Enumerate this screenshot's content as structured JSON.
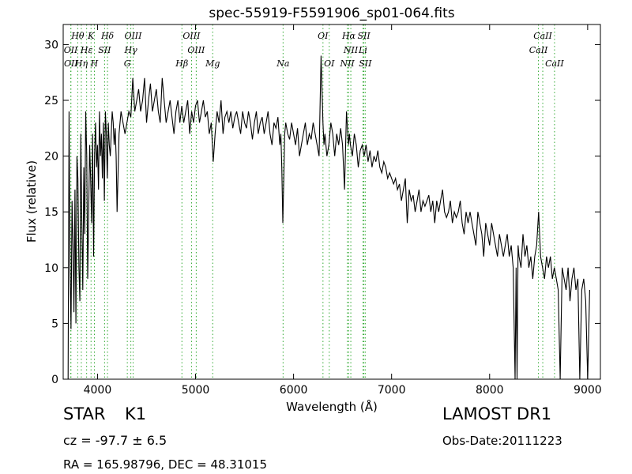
{
  "chart_data": {
    "type": "line",
    "title": "spec-55919-F5591906_sp01-064.fits",
    "xlabel": "Wavelength (Å)",
    "ylabel": "Flux (relative)",
    "xlim": [
      3650,
      9130
    ],
    "ylim": [
      0,
      31.8
    ],
    "xticks": [
      4000,
      5000,
      6000,
      7000,
      8000,
      9000
    ],
    "yticks": [
      0,
      5,
      10,
      15,
      20,
      25,
      30
    ],
    "grid": false,
    "series": [
      {
        "name": "",
        "color": "#000000",
        "x": [
          3700,
          3710,
          3720,
          3730,
          3740,
          3750,
          3760,
          3770,
          3780,
          3790,
          3800,
          3810,
          3820,
          3830,
          3840,
          3850,
          3860,
          3870,
          3880,
          3890,
          3900,
          3910,
          3920,
          3930,
          3940,
          3950,
          3960,
          3970,
          3980,
          3990,
          4000,
          4010,
          4020,
          4030,
          4040,
          4050,
          4060,
          4070,
          4080,
          4090,
          4100,
          4110,
          4120,
          4130,
          4140,
          4150,
          4160,
          4170,
          4180,
          4190,
          4200,
          4220,
          4240,
          4260,
          4280,
          4300,
          4320,
          4340,
          4360,
          4380,
          4400,
          4420,
          4440,
          4460,
          4480,
          4500,
          4520,
          4540,
          4560,
          4580,
          4600,
          4620,
          4640,
          4660,
          4680,
          4700,
          4720,
          4740,
          4760,
          4780,
          4800,
          4820,
          4840,
          4860,
          4880,
          4900,
          4920,
          4940,
          4960,
          4980,
          5000,
          5020,
          5040,
          5060,
          5080,
          5100,
          5120,
          5140,
          5160,
          5180,
          5200,
          5220,
          5240,
          5260,
          5280,
          5300,
          5320,
          5340,
          5360,
          5380,
          5400,
          5420,
          5440,
          5460,
          5480,
          5500,
          5520,
          5540,
          5560,
          5580,
          5600,
          5620,
          5640,
          5660,
          5680,
          5700,
          5720,
          5740,
          5760,
          5780,
          5800,
          5820,
          5840,
          5860,
          5870,
          5880,
          5890,
          5900,
          5910,
          5920,
          5940,
          5960,
          5980,
          6000,
          6020,
          6040,
          6060,
          6080,
          6100,
          6120,
          6140,
          6160,
          6180,
          6200,
          6220,
          6240,
          6260,
          6280,
          6300,
          6310,
          6320,
          6340,
          6360,
          6380,
          6400,
          6420,
          6440,
          6460,
          6480,
          6500,
          6520,
          6540,
          6560,
          6570,
          6580,
          6600,
          6620,
          6640,
          6660,
          6680,
          6700,
          6720,
          6740,
          6760,
          6780,
          6800,
          6820,
          6840,
          6860,
          6880,
          6900,
          6920,
          6940,
          6960,
          6980,
          7000,
          7020,
          7040,
          7060,
          7080,
          7100,
          7120,
          7140,
          7160,
          7180,
          7200,
          7220,
          7240,
          7260,
          7280,
          7300,
          7320,
          7340,
          7360,
          7380,
          7400,
          7420,
          7440,
          7460,
          7480,
          7500,
          7520,
          7540,
          7560,
          7580,
          7600,
          7620,
          7640,
          7660,
          7680,
          7700,
          7720,
          7740,
          7760,
          7780,
          7800,
          7820,
          7840,
          7860,
          7880,
          7900,
          7920,
          7940,
          7960,
          7980,
          8000,
          8020,
          8040,
          8060,
          8080,
          8100,
          8120,
          8140,
          8160,
          8180,
          8200,
          8220,
          8240,
          8260,
          8270,
          8280,
          8290,
          8300,
          8320,
          8340,
          8360,
          8380,
          8400,
          8420,
          8440,
          8460,
          8480,
          8500,
          8520,
          8540,
          8560,
          8580,
          8600,
          8620,
          8640,
          8660,
          8680,
          8700,
          8720,
          8740,
          8760,
          8780,
          8800,
          8820,
          8840,
          8860,
          8880,
          8900,
          8920,
          8940,
          8960,
          8980,
          9000,
          9020
        ],
        "y": [
          0,
          24,
          10,
          4.5,
          16,
          12,
          6,
          17,
          5,
          20,
          18,
          10,
          7,
          22,
          14,
          8,
          19,
          13,
          24,
          20,
          9,
          15,
          21,
          18,
          14,
          22,
          11,
          20,
          23,
          19,
          21,
          17,
          24,
          20,
          22,
          18,
          23,
          16,
          24,
          22,
          18,
          23,
          21,
          20,
          22,
          24,
          23,
          21,
          22.5,
          20,
          15,
          22,
          24,
          23,
          22,
          23,
          24,
          23.5,
          27,
          24,
          25,
          26,
          24,
          25,
          27,
          23,
          25,
          26.5,
          24,
          25,
          26,
          24,
          23,
          27,
          25,
          23,
          24,
          25,
          23.5,
          22,
          24,
          25,
          23,
          24.5,
          23,
          24,
          25,
          22,
          24,
          23,
          24.5,
          25,
          23,
          24,
          25,
          23.5,
          24,
          22,
          23,
          19.5,
          22,
          24,
          23,
          25,
          22,
          23.5,
          24,
          23,
          24,
          22.5,
          23.5,
          24,
          23,
          22,
          24,
          23,
          22.5,
          24,
          23,
          21.5,
          23,
          24,
          22,
          23,
          23.5,
          22,
          23,
          24,
          22,
          21,
          23,
          22.5,
          23.5,
          21,
          22,
          19,
          14,
          18,
          22,
          23,
          22,
          21.5,
          23,
          22,
          21,
          22.5,
          20,
          21,
          22,
          23,
          21,
          22,
          21.5,
          23,
          22,
          21,
          20,
          29,
          23,
          21,
          22,
          20,
          21,
          23,
          22,
          20,
          22,
          21,
          22.5,
          21,
          17,
          24,
          21,
          22,
          21,
          20,
          22,
          21,
          19,
          20.5,
          21,
          20,
          21,
          19.5,
          20.5,
          19,
          20,
          19.5,
          20.5,
          19,
          18.5,
          19.5,
          19,
          18,
          18.5,
          18,
          17.5,
          18,
          17,
          17.5,
          16,
          17,
          18,
          14,
          17,
          16,
          16.5,
          15,
          16,
          17,
          15,
          16,
          15.5,
          16,
          16.5,
          15,
          16,
          14,
          16,
          15,
          16,
          17,
          15,
          14.5,
          15,
          16,
          14,
          15,
          14.5,
          15,
          16,
          14,
          13,
          15,
          14,
          15,
          14,
          13,
          12,
          15,
          14,
          13,
          11,
          14,
          13,
          12,
          14,
          13,
          12,
          11,
          13,
          12,
          11,
          12,
          13,
          11,
          12,
          10,
          0,
          10,
          0,
          12,
          11,
          10,
          13,
          11,
          12,
          10,
          11,
          9,
          11,
          12,
          15,
          11,
          10,
          9,
          11,
          10,
          11,
          9,
          10,
          9,
          8,
          0,
          10,
          9,
          8,
          10,
          7,
          9,
          10,
          8,
          9,
          0,
          8,
          9,
          7,
          0,
          8
        ]
      }
    ],
    "line_labels": [
      {
        "text": "Hθ",
        "x": 3798,
        "row": 1
      },
      {
        "text": "K",
        "x": 3934,
        "row": 1
      },
      {
        "text": "Hδ",
        "x": 4102,
        "row": 1
      },
      {
        "text": "OIII",
        "x": 4363,
        "row": 1
      },
      {
        "text": "OIII",
        "x": 4959,
        "row": 1
      },
      {
        "text": "OI",
        "x": 6300,
        "row": 1
      },
      {
        "text": "Hα",
        "x": 6563,
        "row": 1
      },
      {
        "text": "SII",
        "x": 6717,
        "row": 1
      },
      {
        "text": "CaII",
        "x": 8542,
        "row": 1
      },
      {
        "text": "OII",
        "x": 3727,
        "row": 2
      },
      {
        "text": "Hε",
        "x": 3889,
        "row": 2
      },
      {
        "text": "SII",
        "x": 4072,
        "row": 2
      },
      {
        "text": "Hγ",
        "x": 4340,
        "row": 2
      },
      {
        "text": "OIII",
        "x": 5007,
        "row": 2
      },
      {
        "text": "NII",
        "x": 6584,
        "row": 2
      },
      {
        "text": "Li",
        "x": 6708,
        "row": 2
      },
      {
        "text": "CaII",
        "x": 8498,
        "row": 2
      },
      {
        "text": "OII",
        "x": 3729,
        "row": 3
      },
      {
        "text": "Hη",
        "x": 3835,
        "row": 3
      },
      {
        "text": "H",
        "x": 3968,
        "row": 3
      },
      {
        "text": "G",
        "x": 4304,
        "row": 3
      },
      {
        "text": "Hβ",
        "x": 4861,
        "row": 3
      },
      {
        "text": "Mg",
        "x": 5175,
        "row": 3
      },
      {
        "text": "Na",
        "x": 5893,
        "row": 3
      },
      {
        "text": "OI",
        "x": 6364,
        "row": 3
      },
      {
        "text": "NII",
        "x": 6548,
        "row": 3
      },
      {
        "text": "SII",
        "x": 6731,
        "row": 3
      },
      {
        "text": "CaII",
        "x": 8662,
        "row": 3
      }
    ],
    "line_color": "#33aa33"
  },
  "info": {
    "obj_type": "STAR",
    "obj_subclass": "K1",
    "cz": "cz = -97.7 ± 6.5",
    "radec": "RA = 165.98796, DEC = 48.31015",
    "survey": "LAMOST DR1",
    "obs_date": "Obs-Date:20111223"
  }
}
